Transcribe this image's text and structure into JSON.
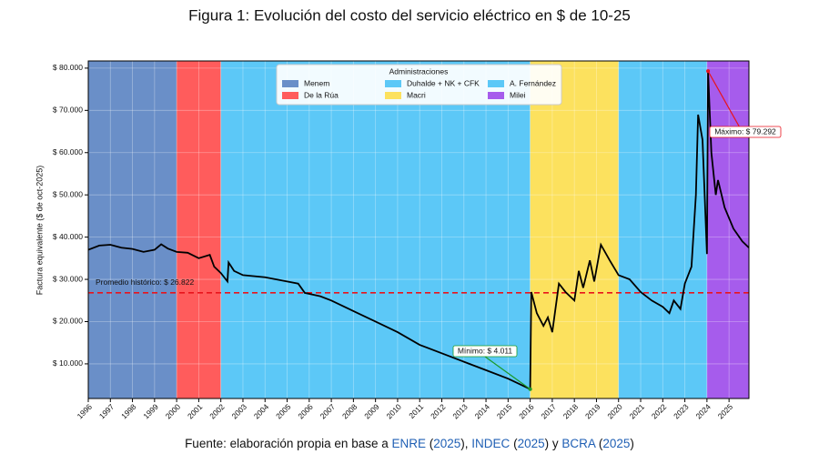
{
  "chart_data": {
    "type": "line",
    "title": "Figura 1: Evolución del costo del servicio eléctrico en $ de 10-25",
    "y_label": "Factura equivalente ($ de oct-2025)",
    "xlim": [
      1996,
      2025.9
    ],
    "ylim": [
      1800,
      81700
    ],
    "xticks": [
      1996,
      1997,
      1998,
      1999,
      2000,
      2001,
      2002,
      2003,
      2004,
      2005,
      2006,
      2007,
      2008,
      2009,
      2010,
      2011,
      2012,
      2013,
      2014,
      2015,
      2016,
      2017,
      2018,
      2019,
      2020,
      2021,
      2022,
      2023,
      2024,
      2025
    ],
    "yticks": [
      {
        "value": 10000,
        "label": "$ 10.000"
      },
      {
        "value": 20000,
        "label": "$ 20.000"
      },
      {
        "value": 30000,
        "label": "$ 30.000"
      },
      {
        "value": 40000,
        "label": "$ 40.000"
      },
      {
        "value": 50000,
        "label": "$ 50.000"
      },
      {
        "value": 60000,
        "label": "$ 60.000"
      },
      {
        "value": 70000,
        "label": "$ 70.000"
      },
      {
        "value": 80000,
        "label": "$ 80.000"
      }
    ],
    "grid": true,
    "legend_title": "Administraciones",
    "periods": [
      {
        "name": "Menem",
        "color": "#6a8fc8",
        "start": 1996,
        "end": 2000
      },
      {
        "name": "De la Rúa",
        "color": "#ff5c5c",
        "start": 2000,
        "end": 2002
      },
      {
        "name": "Duhalde + NK + CFK",
        "color": "#5cc8f7",
        "start": 2002,
        "end": 2016
      },
      {
        "name": "Macri",
        "color": "#fce15e",
        "start": 2016,
        "end": 2020
      },
      {
        "name": "A. Fernández",
        "color": "#5cc8f7",
        "start": 2020,
        "end": 2024
      },
      {
        "name": "Milei",
        "color": "#a65cec",
        "start": 2024,
        "end": 2025.9
      }
    ],
    "x": [
      1996,
      1996.5,
      1997,
      1997.5,
      1998,
      1998.5,
      1999,
      1999.3,
      1999.6,
      2000,
      2000.5,
      2001,
      2001.5,
      2001.7,
      2002,
      2002.3,
      2002.35,
      2002.6,
      2003,
      2004,
      2005,
      2005.5,
      2005.8,
      2006.5,
      2007,
      2008,
      2009,
      2010,
      2011,
      2012,
      2013,
      2014,
      2015,
      2016,
      2016.05,
      2016.3,
      2016.6,
      2016.8,
      2017,
      2017.3,
      2017.6,
      2018,
      2018.2,
      2018.4,
      2018.7,
      2018.9,
      2019.2,
      2019.6,
      2020,
      2020.5,
      2021,
      2021.5,
      2022,
      2022.3,
      2022.5,
      2022.8,
      2023,
      2023.3,
      2023.5,
      2023.6,
      2023.8,
      2024,
      2024.05,
      2024.2,
      2024.4,
      2024.5,
      2024.8,
      2025.2,
      2025.6,
      2025.9
    ],
    "series": [
      {
        "color": "#000000",
        "values": [
          37000,
          38000,
          38200,
          37500,
          37200,
          36500,
          37000,
          38300,
          37300,
          36500,
          36300,
          35000,
          35800,
          33000,
          31500,
          29500,
          34000,
          32000,
          31000,
          30500,
          29500,
          29000,
          26800,
          26000,
          25000,
          22500,
          20000,
          17500,
          14500,
          12500,
          10500,
          8500,
          6500,
          4011,
          27000,
          22000,
          19000,
          21000,
          17500,
          29000,
          27000,
          25000,
          32000,
          28000,
          34500,
          29500,
          38200,
          34500,
          31000,
          30000,
          27000,
          25000,
          23500,
          22000,
          25000,
          23000,
          29000,
          33000,
          50000,
          69000,
          63000,
          36000,
          79292,
          60000,
          50000,
          53500,
          47000,
          42000,
          39000,
          37500
        ]
      }
    ],
    "mean": {
      "value": 26822,
      "label": "Promedio histórico: $ 26.822"
    },
    "min_label": "Mínimo: $ 4.011",
    "max_label": "Máximo: $ 79.292",
    "source": [
      {
        "text": "Fuente: elaboración propia en base a ",
        "link": false
      },
      {
        "text": "ENRE",
        "link": true
      },
      {
        "text": " (",
        "link": false
      },
      {
        "text": "2025",
        "link": true
      },
      {
        "text": "), ",
        "link": false
      },
      {
        "text": "INDEC",
        "link": true
      },
      {
        "text": " (",
        "link": false
      },
      {
        "text": "2025",
        "link": true
      },
      {
        "text": ") y ",
        "link": false
      },
      {
        "text": "BCRA",
        "link": true
      },
      {
        "text": " (",
        "link": false
      },
      {
        "text": "2025",
        "link": true
      },
      {
        "text": ")",
        "link": false
      }
    ]
  }
}
